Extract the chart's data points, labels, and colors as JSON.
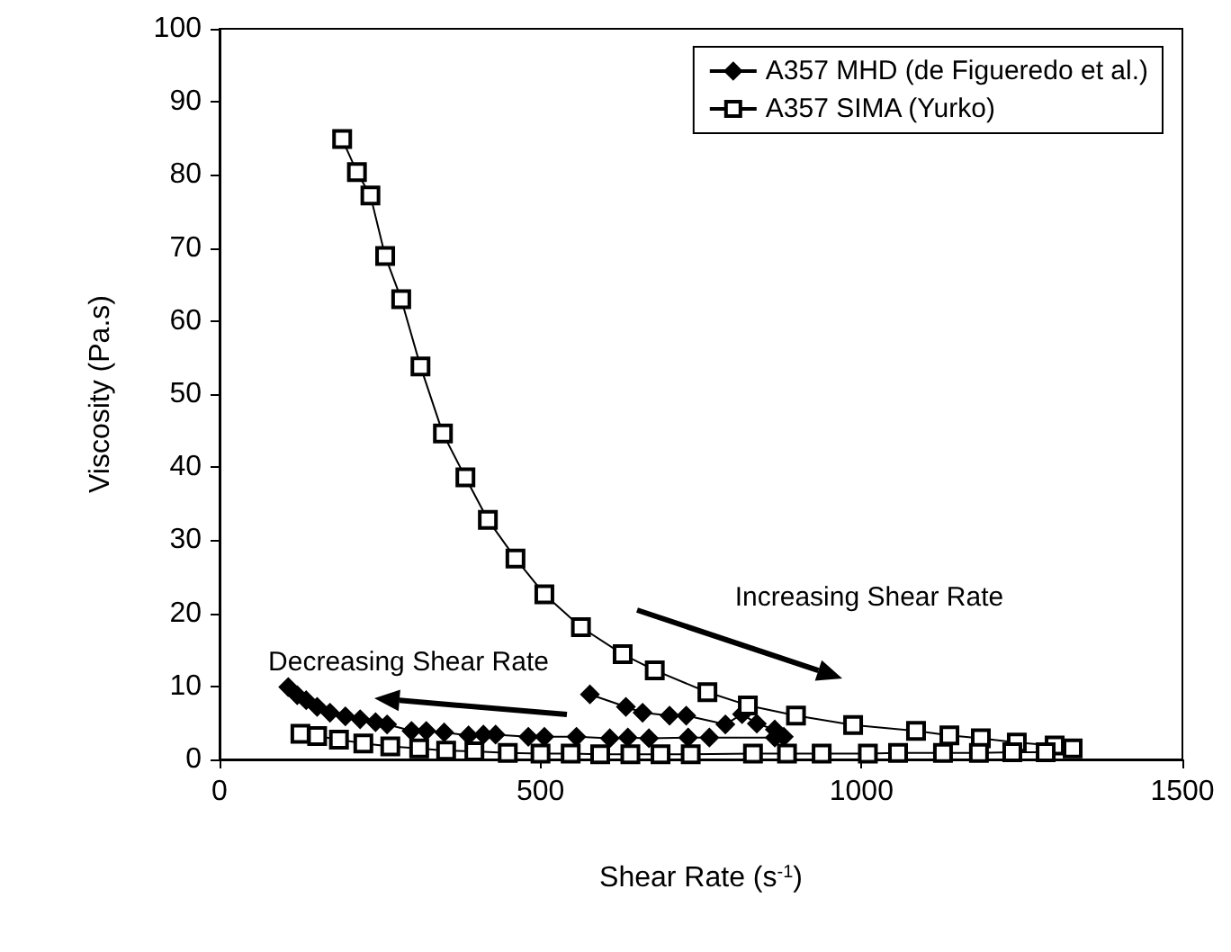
{
  "chart_data": {
    "type": "line",
    "xlabel": "Shear Rate (s$^{-1}$)",
    "ylabel": "Viscosity (Pa.s)",
    "xlim": [
      0,
      1500
    ],
    "xticks": [
      0,
      500,
      1000,
      1500
    ],
    "ylim": [
      0,
      100
    ],
    "yticks": [
      0,
      10,
      20,
      30,
      40,
      50,
      60,
      70,
      80,
      90,
      100
    ],
    "grid": false,
    "legend": "top right",
    "series": [
      {
        "name": "A357 MHD (de Figueredo et al.)",
        "color": "#000000",
        "marker": "diamond",
        "x": [
          577,
          633,
          659,
          701,
          727,
          788,
          814,
          837,
          865,
          879,
          865,
          763,
          730,
          669,
          636,
          608,
          556,
          506,
          481,
          430,
          411,
          388,
          350,
          322,
          299,
          261,
          243,
          219,
          196,
          172,
          152,
          135,
          121,
          107
        ],
        "values": [
          8.9,
          7.2,
          6.4,
          6.0,
          6.0,
          4.8,
          6.2,
          4.9,
          4.1,
          3.1,
          3.0,
          3.0,
          3.0,
          2.9,
          3.0,
          2.9,
          3.1,
          3.1,
          3.1,
          3.4,
          3.4,
          3.3,
          3.7,
          3.9,
          3.9,
          4.8,
          5.1,
          5.5,
          5.9,
          6.4,
          7.2,
          8.1,
          8.8,
          9.9
        ]
      },
      {
        "name": "A357 SIMA (Yurko)",
        "color": "#000000",
        "marker": "square",
        "x": [
          191,
          214,
          235,
          258,
          283,
          313,
          348,
          383,
          418,
          461,
          506,
          563,
          628,
          678,
          760,
          823,
          898,
          987,
          1085,
          1137,
          1186,
          1242,
          1301,
          1329,
          1287,
          1235,
          1183,
          1127,
          1057,
          1010,
          938,
          884,
          831,
          734,
          687,
          640,
          593,
          547,
          500,
          449,
          397,
          353,
          311,
          266,
          224,
          186,
          152,
          126
        ],
        "values": [
          84.9,
          80.4,
          77.2,
          68.9,
          63.0,
          53.8,
          44.6,
          38.6,
          32.8,
          27.5,
          22.6,
          18.1,
          14.4,
          12.2,
          9.2,
          7.4,
          6.0,
          4.7,
          3.9,
          3.3,
          2.9,
          2.3,
          1.9,
          1.5,
          1.0,
          1.0,
          0.9,
          0.9,
          0.9,
          0.8,
          0.8,
          0.8,
          0.8,
          0.7,
          0.7,
          0.7,
          0.7,
          0.8,
          0.8,
          0.9,
          1.1,
          1.2,
          1.5,
          1.8,
          2.2,
          2.7,
          3.2,
          3.5
        ]
      }
    ],
    "annotations": [
      "Increasing Shear Rate",
      "Decreasing Shear Rate"
    ]
  }
}
